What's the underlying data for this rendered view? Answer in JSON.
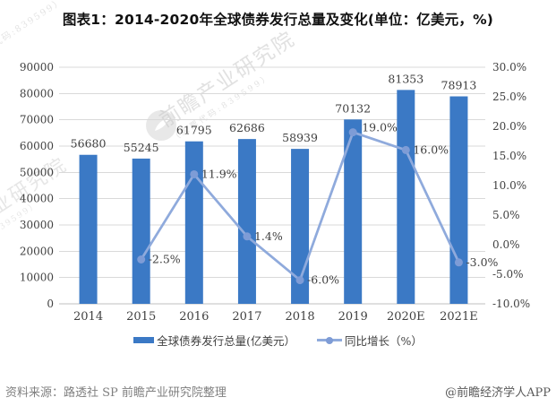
{
  "header": {
    "title": "图表1：2014-2020年全球债券发行总量及变化(单位：亿美元，%)"
  },
  "chart_data": {
    "type": "bar+line combo",
    "title": "图表1：2014-2020年全球债券发行总量及变化(单位：亿美元，%)",
    "categories": [
      "2014",
      "2015",
      "2016",
      "2017",
      "2018",
      "2019",
      "2020E",
      "2021E"
    ],
    "series": [
      {
        "name": "全球债券发行总量(亿美元）",
        "type": "bar",
        "color": "#3B79C5",
        "axis": "left",
        "values": [
          56680,
          55245,
          61795,
          62686,
          58939,
          70132,
          81353,
          78913
        ],
        "labels": [
          "56680",
          "55245",
          "61795",
          "62686",
          "58939",
          "70132",
          "81353",
          "78913"
        ]
      },
      {
        "name": "同比增长（%）",
        "type": "line",
        "color": "#8FAADC",
        "marker_color": "#7E9CD6",
        "axis": "right",
        "values": [
          null,
          -2.5,
          11.9,
          1.4,
          -6.0,
          19.0,
          16.0,
          -3.0
        ],
        "labels": [
          "",
          "-2.5%",
          "11.9%",
          "1.4%",
          "-6.0%",
          "19.0%",
          "16.0%",
          "-3.0%"
        ]
      }
    ],
    "left_axis": {
      "min": 0,
      "max": 90000,
      "step": 10000,
      "ticks": [
        {
          "value": 0,
          "label": "0"
        },
        {
          "value": 10000,
          "label": "10000"
        },
        {
          "value": 20000,
          "label": "20000"
        },
        {
          "value": 30000,
          "label": "30000"
        },
        {
          "value": 40000,
          "label": "40000"
        },
        {
          "value": 50000,
          "label": "50000"
        },
        {
          "value": 60000,
          "label": "60000"
        },
        {
          "value": 70000,
          "label": "70000"
        },
        {
          "value": 80000,
          "label": "80000"
        },
        {
          "value": 90000,
          "label": "90000"
        }
      ]
    },
    "right_axis": {
      "min": -10,
      "max": 30,
      "step": 5,
      "ticks": [
        {
          "value": 30,
          "label": "30.0%"
        },
        {
          "value": 25,
          "label": "25.0%"
        },
        {
          "value": 20,
          "label": "20.0%"
        },
        {
          "value": 15,
          "label": "15.0%"
        },
        {
          "value": 10,
          "label": "10.0%"
        },
        {
          "value": 5,
          "label": "5.0%"
        },
        {
          "value": 0,
          "label": "0.0%"
        },
        {
          "value": -5,
          "label": "-5.0%"
        },
        {
          "value": -10,
          "label": "-10.0%"
        }
      ]
    },
    "grid": true,
    "grid_color": "#D9D9D9",
    "axis_line_color": "#BFBFBF",
    "legend_position": "bottom"
  },
  "legend": {
    "items": [
      {
        "label": "全球债券发行总量(亿美元）",
        "type": "bar",
        "color": "#3B79C5"
      },
      {
        "label": "同比增长（%）",
        "type": "line",
        "color": "#8FAADC",
        "marker_color": "#7E9CD6"
      }
    ]
  },
  "footer": {
    "source": "资料来源：路透社 SP 前瞻产业研究院整理",
    "brand": "@前瞻经济学人APP"
  },
  "watermark": {
    "text": "前瞻产业研究院",
    "subtext": "（股票代码:839599）"
  }
}
